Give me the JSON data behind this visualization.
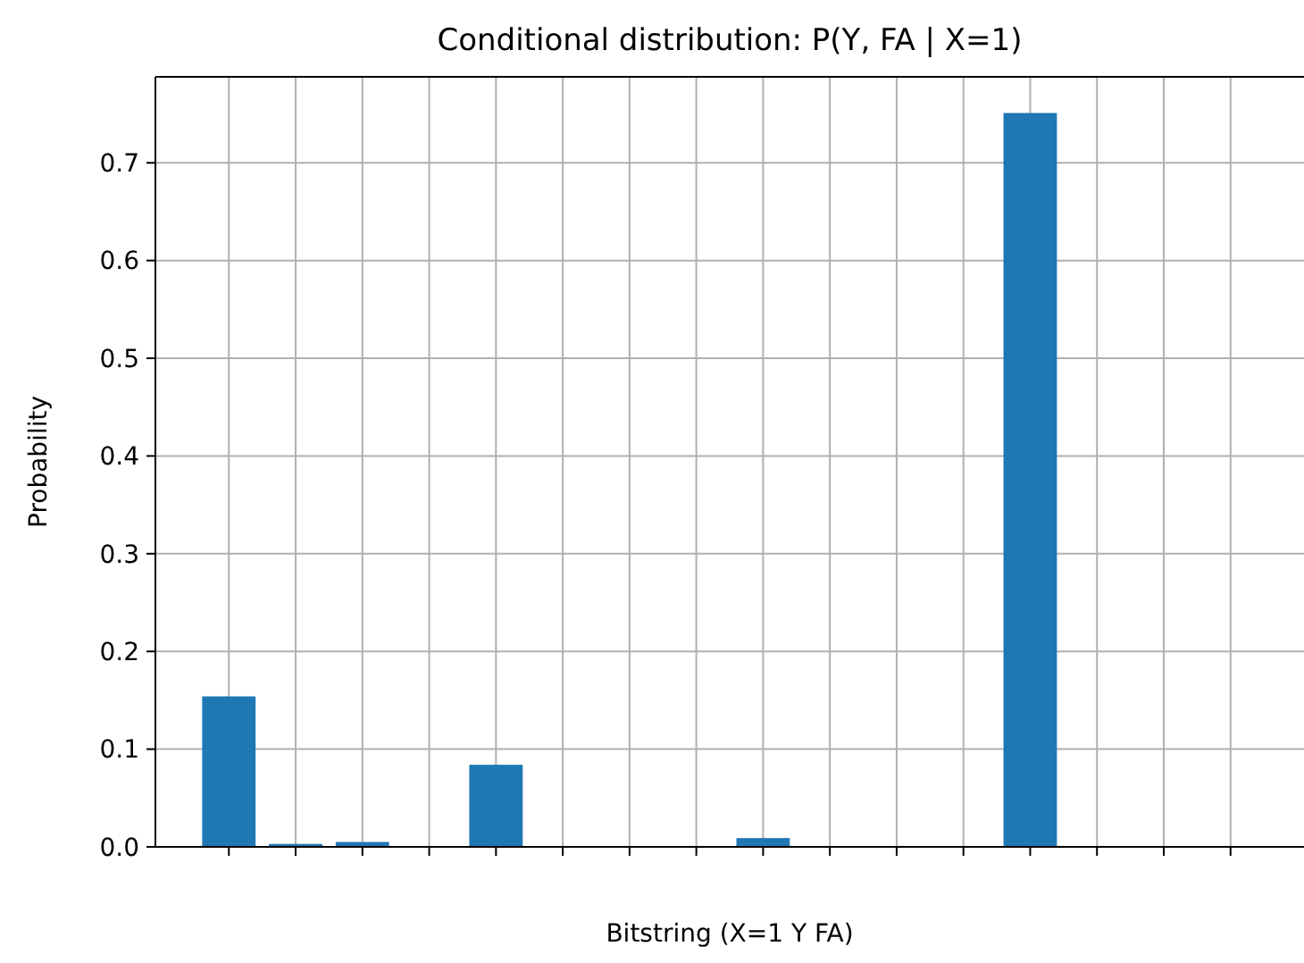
{
  "chart_data": {
    "type": "bar",
    "title": "Conditional distribution: P(Y, FA | X=1)",
    "xlabel": "Bitstring (X=1 Y FA)",
    "ylabel": "Probability",
    "categories": [
      null,
      null,
      null,
      null,
      null,
      null,
      null,
      null,
      null,
      null,
      null,
      null,
      null,
      null,
      null,
      null
    ],
    "values": [
      0.154,
      0.003,
      0.005,
      0,
      0.084,
      0,
      0,
      0,
      0.009,
      0,
      0,
      0,
      0.751,
      0,
      0,
      0
    ],
    "color": "#1f77b4",
    "ylim": [
      0,
      0.788
    ],
    "yticks": [
      {
        "value": 0,
        "label": "0.0"
      },
      {
        "value": 0.1,
        "label": "0.1"
      },
      {
        "value": 0.2,
        "label": "0.2"
      },
      {
        "value": 0.3,
        "label": "0.3"
      },
      {
        "value": 0.4,
        "label": "0.4"
      },
      {
        "value": 0.5,
        "label": "0.5"
      },
      {
        "value": 0.6,
        "label": "0.6"
      },
      {
        "value": 0.7,
        "label": "0.7"
      }
    ],
    "grid": true
  }
}
